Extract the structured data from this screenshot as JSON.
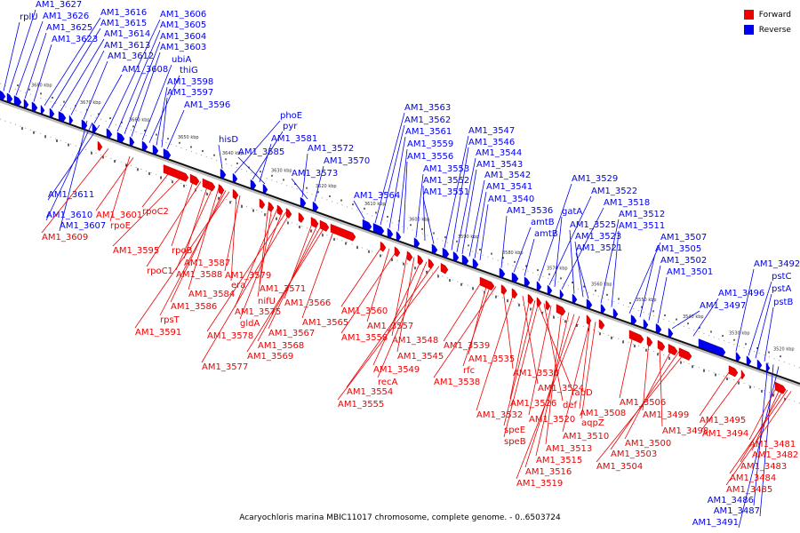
{
  "caption": "Acaryochloris marina MBIC11017 chromosome, complete genome. - 0..6503724",
  "legend": {
    "forward": {
      "label": "Forward",
      "color": "#ee0000"
    },
    "reverse": {
      "label": "Reverse",
      "color": "#0000ee"
    }
  },
  "ticks": [
    "3680 kbp",
    "3670 kbp",
    "3660 kbp",
    "3650 kbp",
    "3640 kbp",
    "3630 kbp",
    "3620 kbp",
    "3610 kbp",
    "3600 kbp",
    "3590 kbp",
    "3580 kbp",
    "3570 kbp",
    "3560 kbp",
    "3550 kbp",
    "3540 kbp",
    "3530 kbp",
    "3520 kbp"
  ],
  "reverse_labels": [
    "rplU",
    "AM1_3627",
    "AM1_3626",
    "AM1_3625",
    "AM1_3623",
    "AM1_3616",
    "AM1_3615",
    "AM1_3614",
    "AM1_3613",
    "AM1_3612",
    "AM1_3608",
    "AM1_3606",
    "AM1_3605",
    "AM1_3604",
    "AM1_3603",
    "ubiA",
    "thiG",
    "AM1_3598",
    "AM1_3597",
    "AM1_3596",
    "hisD",
    "phoE",
    "pyr",
    "AM1_3581",
    "AM1_3585",
    "AM1_3572",
    "AM1_3570",
    "AM1_3573",
    "AM1_3611",
    "AM1_3610",
    "AM1_3607",
    "AM1_3564",
    "AM1_3563",
    "AM1_3562",
    "AM1_3561",
    "AM1_3559",
    "AM1_3556",
    "AM1_3553",
    "AM1_3552",
    "AM1_3551",
    "AM1_3547",
    "AM1_3546",
    "AM1_3544",
    "AM1_3543",
    "AM1_3542",
    "AM1_3541",
    "AM1_3540",
    "AM1_3536",
    "amtB",
    "amtB",
    "AM1_3529",
    "AM1_3522",
    "gatA",
    "AM1_3518",
    "AM1_3525",
    "AM1_3523",
    "AM1_3521",
    "AM1_3512",
    "AM1_3511",
    "AM1_3507",
    "AM1_3505",
    "AM1_3502",
    "AM1_3501",
    "AM1_3497",
    "AM1_3496",
    "AM1_3492",
    "pstC",
    "pstA",
    "pstB",
    "AM1_3486",
    "AM1_3487",
    "AM1_3491"
  ],
  "forward_labels": [
    "AM1_3601",
    "rpoE",
    "AM1_3609",
    "rpoC2",
    "AM1_3595",
    "rpoB",
    "rpoC1",
    "AM1_3587",
    "AM1_3588",
    "AM1_3584",
    "AM1_3586",
    "rpsT",
    "AM1_3591",
    "era",
    "AM1_3579",
    "AM1_3571",
    "nifU",
    "AM1_3575",
    "gldA",
    "AM1_3578",
    "AM1_3577",
    "AM1_3566",
    "AM1_3567",
    "AM1_3568",
    "AM1_3569",
    "AM1_3565",
    "AM1_3560",
    "AM1_3557",
    "AM1_3558",
    "AM1_3548",
    "AM1_3545",
    "AM1_3549",
    "recA",
    "AM1_3554",
    "AM1_3555",
    "AM1_3539",
    "AM1_3535",
    "rfc",
    "AM1_3538",
    "AM1_3530",
    "AM1_3524",
    "fabD",
    "AM1_3526",
    "def",
    "AM1_3532",
    "AM1_3520",
    "speE",
    "speB",
    "AM1_3508",
    "aqpZ",
    "AM1_3510",
    "AM1_3513",
    "AM1_3515",
    "AM1_3516",
    "AM1_3519",
    "AM1_3506",
    "AM1_3499",
    "AM1_3498",
    "AM1_3500",
    "AM1_3503",
    "AM1_3504",
    "AM1_3495",
    "AM1_3494",
    "AM1_3481",
    "AM1_3482",
    "AM1_3483",
    "AM1_3484",
    "AM1_3485"
  ]
}
